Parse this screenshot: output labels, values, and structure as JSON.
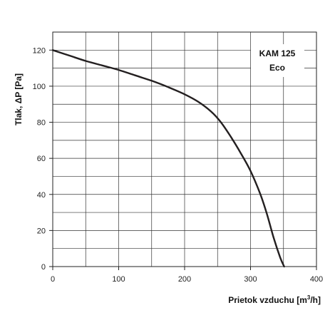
{
  "chart_data": {
    "type": "line",
    "title": "",
    "annotation": {
      "line1": "KAM 125",
      "line2": "Eco"
    },
    "xlabel": {
      "text": "Prietok vzduchu  [m",
      "sup": "3",
      "tail": "/h]"
    },
    "ylabel": "Tlak, ΔP [Pa]",
    "xlim": [
      0,
      400
    ],
    "ylim": [
      0,
      130
    ],
    "x_ticks": [
      0,
      100,
      200,
      300,
      400
    ],
    "y_ticks": [
      0,
      20,
      40,
      60,
      80,
      100,
      120
    ],
    "x_grid_step": 50,
    "y_grid_step": 10,
    "grid": true,
    "series": [
      {
        "color": "#231f20",
        "x": [
          0,
          25,
          50,
          75,
          100,
          125,
          150,
          175,
          200,
          220,
          240,
          255,
          270,
          285,
          300,
          315,
          325,
          335,
          345,
          351
        ],
        "y": [
          120,
          117,
          114,
          111.5,
          109,
          106,
          103,
          99.5,
          95.5,
          91.5,
          86,
          80,
          72,
          63,
          53,
          40,
          29,
          16,
          5,
          0
        ]
      }
    ]
  }
}
